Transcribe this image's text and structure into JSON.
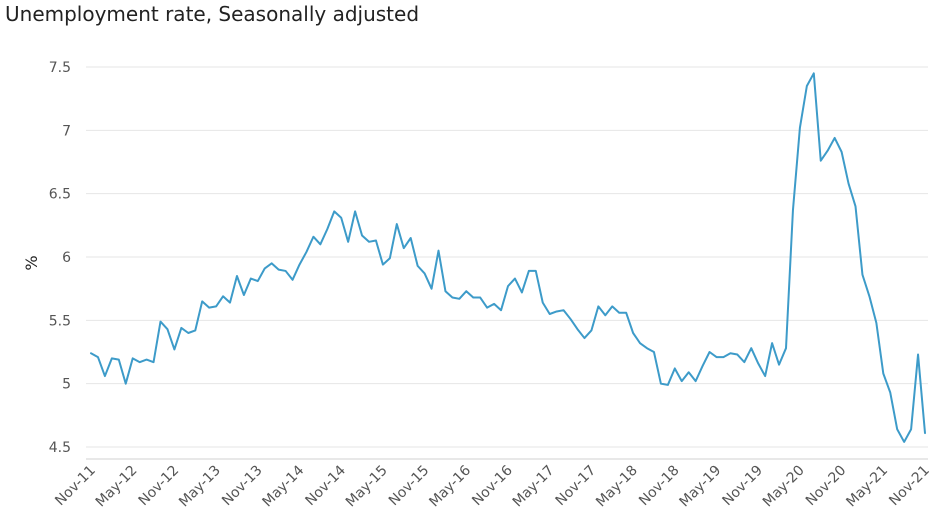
{
  "chart_data": {
    "type": "line",
    "title": "Unemployment rate, Seasonally adjusted",
    "xlabel": "",
    "ylabel": "%",
    "ylim": [
      4.5,
      7.5
    ],
    "yticks": [
      "7.5",
      "7",
      "6.5",
      "6",
      "5.5",
      "5",
      "4.5"
    ],
    "grid": true,
    "line_color": "#3d9bc9",
    "start_month": "Nov-11",
    "xtick_every_months": 6,
    "xtick_labels": [
      "Nov-11",
      "May-12",
      "Nov-12",
      "May-13",
      "Nov-13",
      "May-14",
      "Nov-14",
      "May-15",
      "Nov-15",
      "May-16",
      "Nov-16",
      "May-17",
      "Nov-17",
      "May-18",
      "Nov-18",
      "May-19",
      "Nov-19",
      "May-20",
      "Nov-20",
      "May-21",
      "Nov-21"
    ],
    "series": [
      {
        "name": "Unemployment rate",
        "values": [
          5.24,
          5.21,
          5.06,
          5.2,
          5.19,
          5.0,
          5.2,
          5.17,
          5.19,
          5.17,
          5.49,
          5.43,
          5.27,
          5.44,
          5.4,
          5.42,
          5.65,
          5.6,
          5.61,
          5.69,
          5.64,
          5.85,
          5.7,
          5.83,
          5.81,
          5.91,
          5.95,
          5.9,
          5.89,
          5.82,
          5.94,
          6.04,
          6.16,
          6.1,
          6.22,
          6.36,
          6.31,
          6.12,
          6.36,
          6.17,
          6.12,
          6.13,
          5.94,
          5.99,
          6.26,
          6.07,
          6.15,
          5.93,
          5.87,
          5.75,
          6.05,
          5.73,
          5.68,
          5.67,
          5.73,
          5.68,
          5.68,
          5.6,
          5.63,
          5.58,
          5.77,
          5.83,
          5.72,
          5.89,
          5.89,
          5.64,
          5.55,
          5.57,
          5.58,
          5.51,
          5.43,
          5.36,
          5.42,
          5.61,
          5.54,
          5.61,
          5.56,
          5.56,
          5.4,
          5.32,
          5.28,
          5.25,
          5.0,
          4.99,
          5.12,
          5.02,
          5.09,
          5.02,
          5.14,
          5.25,
          5.21,
          5.21,
          5.24,
          5.23,
          5.17,
          5.28,
          5.16,
          5.06,
          5.32,
          5.15,
          5.28,
          6.37,
          7.02,
          7.35,
          7.45,
          6.76,
          6.84,
          6.94,
          6.83,
          6.58,
          6.4,
          5.86,
          5.69,
          5.48,
          5.08,
          4.93,
          4.64,
          4.54,
          4.64,
          5.23,
          4.61
        ]
      }
    ]
  }
}
